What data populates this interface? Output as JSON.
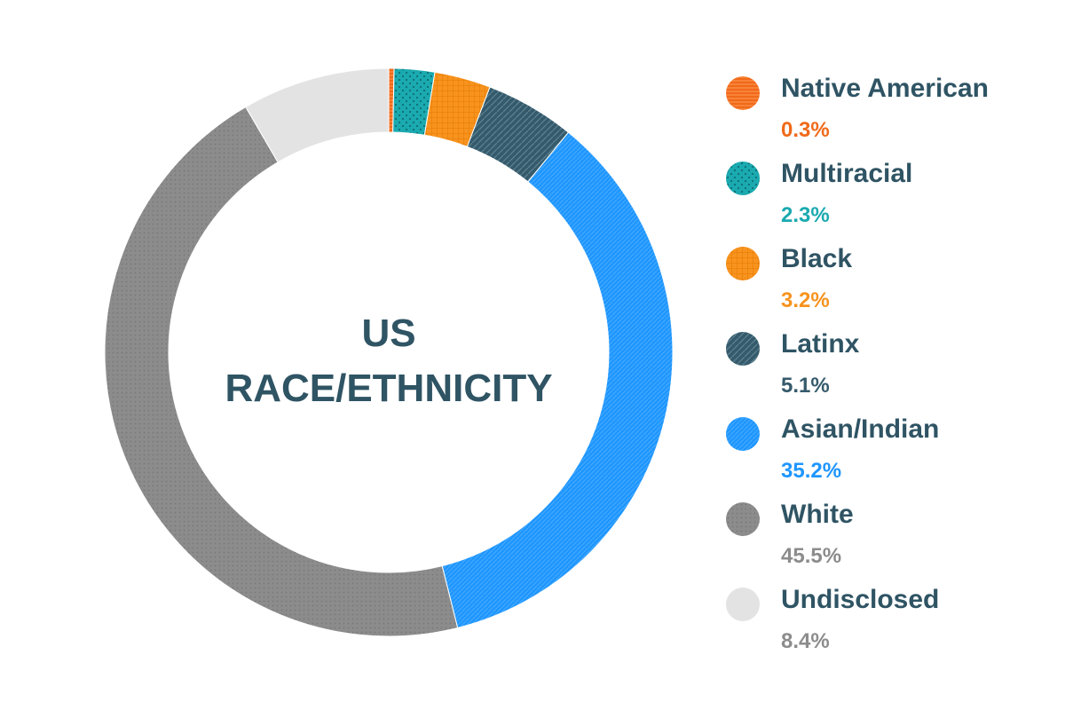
{
  "chart_data": {
    "type": "pie",
    "center_title": [
      "US",
      "RACE/ETHNICITY"
    ],
    "categories": [
      "Native American",
      "Multiracial",
      "Black",
      "Latinx",
      "Asian/Indian",
      "White",
      "Undisclosed"
    ],
    "values": [
      0.3,
      2.3,
      3.2,
      5.1,
      35.2,
      45.5,
      8.4
    ],
    "value_labels": [
      "0.3%",
      "2.3%",
      "3.2%",
      "5.1%",
      "35.2%",
      "45.5%",
      "8.4%"
    ],
    "colors": [
      "#f06a1a",
      "#1aaab0",
      "#f7931e",
      "#355a6b",
      "#1e96ff",
      "#8c8c8c",
      "#e3e3e3"
    ],
    "value_colors": [
      "#f06a1a",
      "#1aaab0",
      "#f7931e",
      "#355a6b",
      "#1e96ff",
      "#8c8c8c",
      "#8c8c8c"
    ],
    "patterns": [
      "lines",
      "dots",
      "grid",
      "diagonal",
      "fine-lines",
      "dots",
      "none"
    ],
    "legend_position": "right",
    "donut": true
  }
}
